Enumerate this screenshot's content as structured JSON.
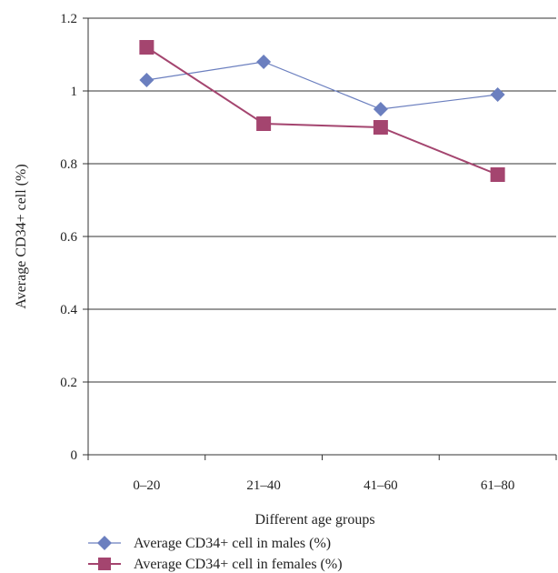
{
  "chart_data": {
    "type": "line",
    "title": "",
    "xlabel": "Different age groups",
    "ylabel": "Average CD34+ cell (%)",
    "categories": [
      "0–20",
      "21–40",
      "41–60",
      "61–80"
    ],
    "ylim": [
      0,
      1.2
    ],
    "yticks": [
      "0",
      "0.2",
      "0.4",
      "0.6",
      "0.8",
      "1",
      "1.2"
    ],
    "grid": "horizontal",
    "legend_position": "bottom-left",
    "series": [
      {
        "name": "Average CD34+ cell in males (%)",
        "values": [
          1.03,
          1.08,
          0.95,
          0.99
        ],
        "marker": "diamond",
        "color": "#6b7fbf"
      },
      {
        "name": "Average CD34+ cell in females (%)",
        "values": [
          1.12,
          0.91,
          0.9,
          0.77
        ],
        "marker": "square",
        "color": "#a4456f"
      }
    ]
  }
}
